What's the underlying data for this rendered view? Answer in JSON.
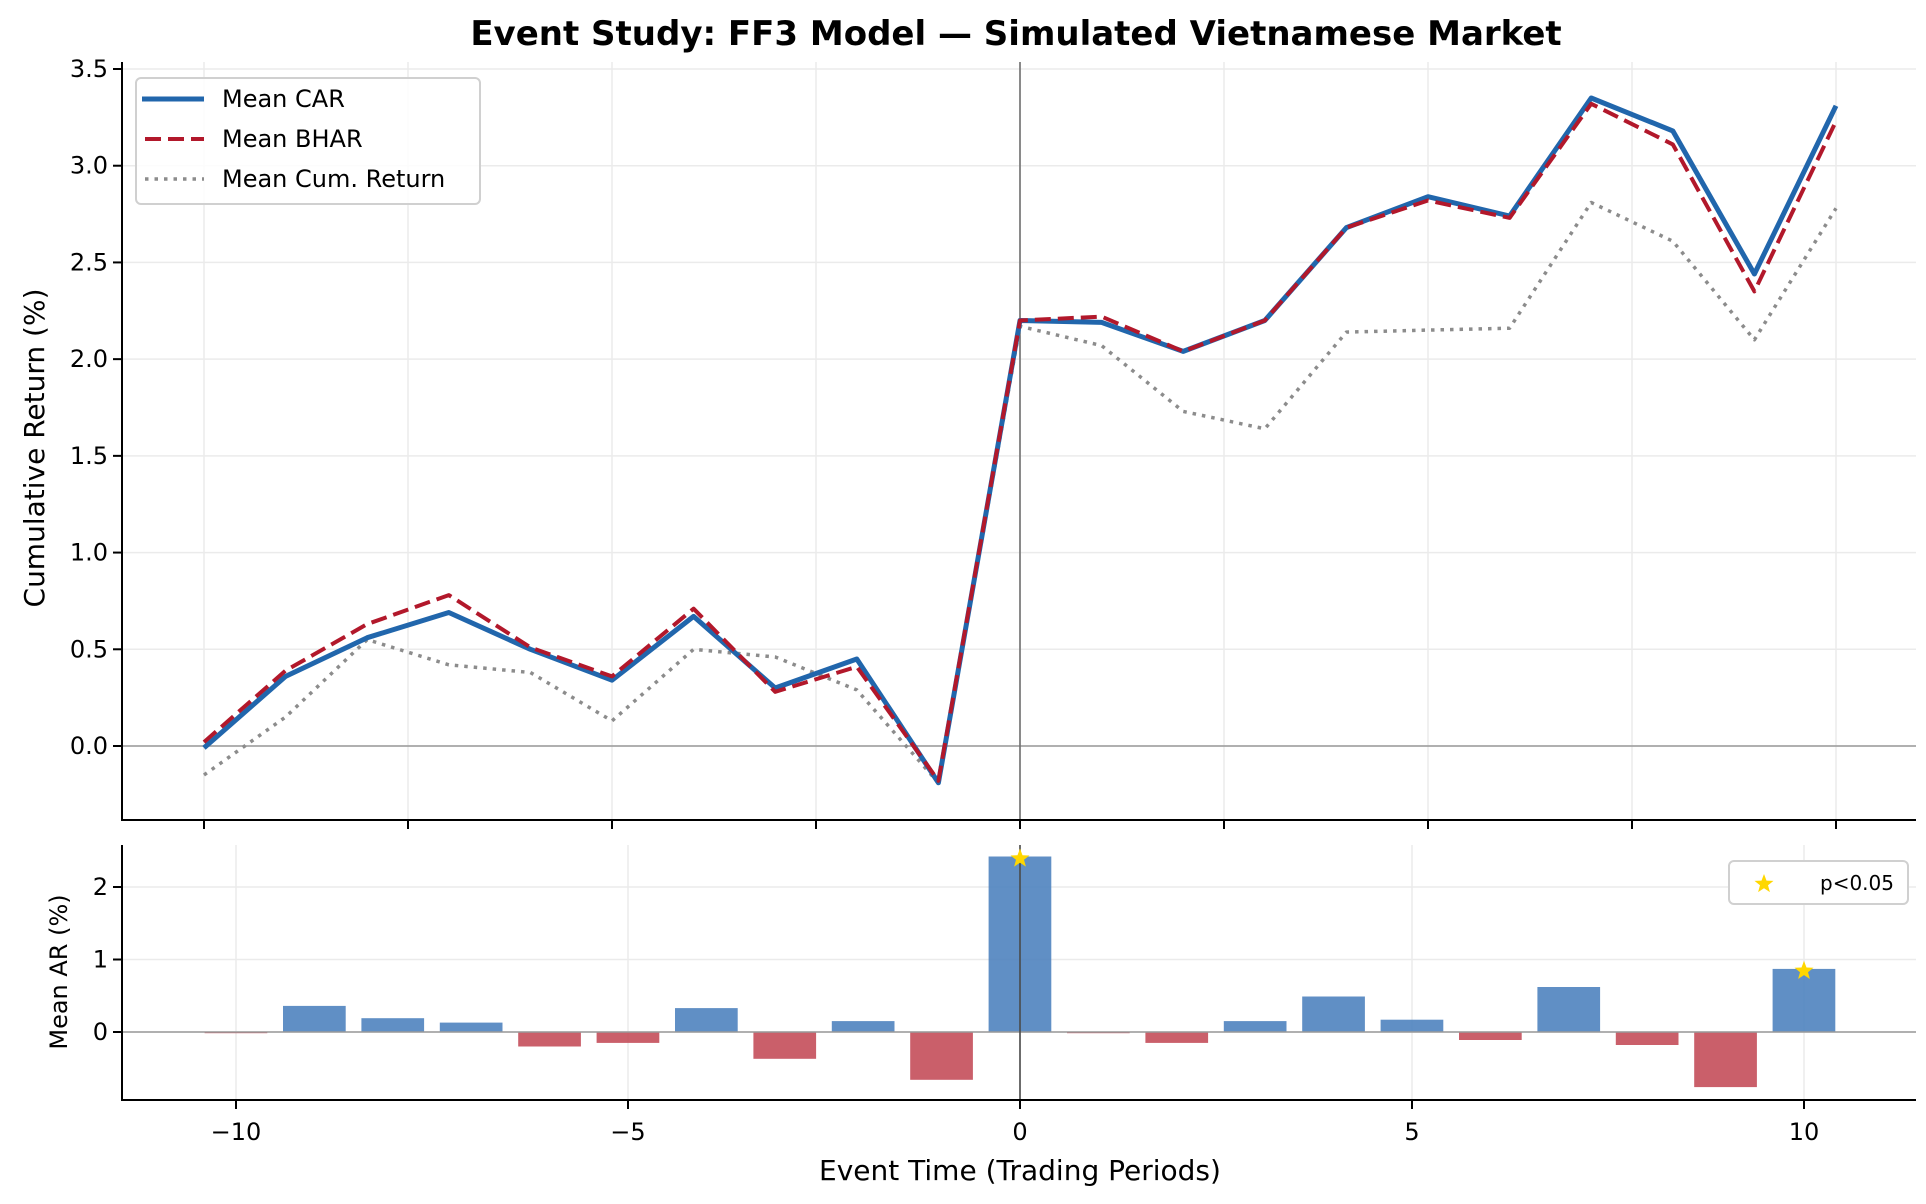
{
  "chart_data": [
    {
      "type": "line",
      "title": "Event Study: FF3 Model — Simulated Vietnamese Market",
      "xlabel": "",
      "ylabel": "Cumulative Return (%)",
      "x": [
        -10,
        -9,
        -8,
        -7,
        -6,
        -5,
        -4,
        -3,
        -2,
        -1,
        0,
        1,
        2,
        3,
        4,
        5,
        6,
        7,
        8,
        9,
        10
      ],
      "ylim": [
        -0.4,
        3.55
      ],
      "yticks": [
        0.0,
        0.5,
        1.0,
        1.5,
        2.0,
        2.5,
        3.0,
        3.5
      ],
      "ytick_labels": [
        "0.0",
        "0.5",
        "1.0",
        "1.5",
        "2.0",
        "2.5",
        "3.0",
        "3.5"
      ],
      "grid": true,
      "legend_position": "top-left",
      "series": [
        {
          "name": "Mean CAR",
          "color": "#2166ac",
          "style": "solid",
          "values": [
            -0.01,
            0.36,
            0.56,
            0.69,
            0.5,
            0.34,
            0.67,
            0.3,
            0.45,
            -0.19,
            2.2,
            2.19,
            2.04,
            2.2,
            2.68,
            2.84,
            2.74,
            3.35,
            3.18,
            2.44,
            3.31
          ]
        },
        {
          "name": "Mean BHAR",
          "color": "#b2182b",
          "style": "dashed",
          "values": [
            0.02,
            0.39,
            0.63,
            0.78,
            0.51,
            0.36,
            0.71,
            0.28,
            0.41,
            -0.18,
            2.2,
            2.22,
            2.04,
            2.2,
            2.68,
            2.82,
            2.73,
            3.32,
            3.11,
            2.35,
            3.23
          ]
        },
        {
          "name": "Mean Cum. Return",
          "color": "#8c8c8c",
          "style": "dotted",
          "values": [
            -0.15,
            0.15,
            0.55,
            0.42,
            0.38,
            0.13,
            0.5,
            0.46,
            0.29,
            -0.19,
            2.17,
            2.07,
            1.73,
            1.64,
            2.14,
            2.15,
            2.16,
            2.81,
            2.61,
            2.1,
            2.78
          ]
        }
      ],
      "reference_lines": {
        "vertical_x": 0,
        "horizontal_y": 0
      }
    },
    {
      "type": "bar",
      "title": "",
      "xlabel": "Event Time (Trading Periods)",
      "ylabel": "Mean AR (%)",
      "categories": [
        -10,
        -9,
        -8,
        -7,
        -6,
        -5,
        -4,
        -3,
        -2,
        -1,
        0,
        1,
        2,
        3,
        4,
        5,
        6,
        7,
        8,
        9,
        10
      ],
      "values": [
        -0.01,
        0.36,
        0.19,
        0.13,
        -0.2,
        -0.15,
        0.33,
        -0.37,
        0.15,
        -0.66,
        2.42,
        -0.01,
        -0.15,
        0.15,
        0.49,
        0.17,
        -0.11,
        0.62,
        -0.18,
        -0.76,
        0.87
      ],
      "significant": [
        0,
        10
      ],
      "xlim": [
        -11.5,
        11.5
      ],
      "ylim": [
        -0.9,
        2.6
      ],
      "xticks": [
        -10,
        -5,
        0,
        5,
        10
      ],
      "xtick_labels": [
        "−10",
        "−5",
        "0",
        "5",
        "10"
      ],
      "yticks": [
        0,
        1,
        2
      ],
      "ytick_labels": [
        "0",
        "1",
        "2"
      ],
      "grid": true,
      "positive_color": "#4f83bf",
      "negative_color": "#c44e5a",
      "marker_color": "#ffd700",
      "legend": [
        {
          "label": "p<0.05",
          "marker": "star"
        }
      ],
      "legend_position": "top-right"
    }
  ]
}
